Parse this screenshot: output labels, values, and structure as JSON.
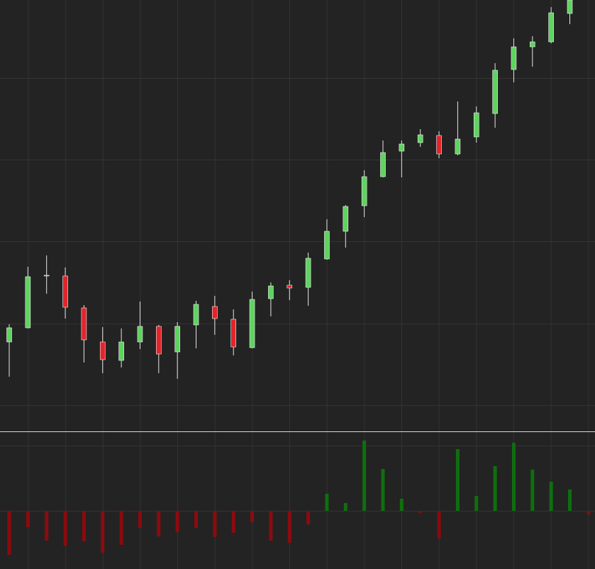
{
  "chart_data": [
    {
      "type": "candlestick",
      "up_color": "#5fd35f",
      "down_color": "#e3242b",
      "grid": true,
      "categories": [
        null,
        null,
        null,
        null,
        null,
        null,
        null,
        null,
        null,
        null,
        null,
        null,
        null,
        null,
        null,
        null,
        null,
        null,
        null,
        null,
        null,
        null,
        null,
        null,
        null,
        null,
        null,
        null,
        null,
        null,
        null,
        null
      ],
      "open": [
        126,
        146,
        219,
        219,
        174,
        126,
        100,
        126,
        148,
        112,
        150,
        176,
        158,
        118,
        187,
        206,
        203,
        243,
        282,
        318,
        359,
        395,
        407,
        417,
        391,
        415,
        448,
        510,
        542,
        549,
        589,
        null
      ],
      "high": [
        151,
        232,
        248,
        231,
        178,
        147,
        145,
        183,
        150,
        154,
        184,
        191,
        172,
        197,
        210,
        213,
        252,
        299,
        319,
        368,
        410,
        410,
        426,
        423,
        465,
        458,
        519,
        554,
        557,
        598,
        608,
        null
      ],
      "low": [
        77,
        145,
        194,
        159,
        97,
        82,
        90,
        116,
        82,
        74,
        117,
        136,
        107,
        117,
        162,
        185,
        177,
        242,
        259,
        302,
        358,
        358,
        401,
        385,
        389,
        407,
        428,
        492,
        514,
        547,
        574,
        null
      ],
      "close": [
        146,
        218,
        220,
        175,
        129,
        101,
        126,
        148,
        109,
        148,
        179,
        159,
        119,
        186,
        205,
        202,
        244,
        282,
        317,
        359,
        393,
        405,
        418,
        391,
        412,
        449,
        509,
        542,
        549,
        590,
        608,
        null
      ],
      "ylim": [
        0,
        608
      ],
      "yticks": [
        37,
        152,
        268,
        383,
        498
      ]
    },
    {
      "type": "bar",
      "up_color": "#0f6e0f",
      "down_color": "#8c0a0f",
      "grid": true,
      "categories": [
        null,
        null,
        null,
        null,
        null,
        null,
        null,
        null,
        null,
        null,
        null,
        null,
        null,
        null,
        null,
        null,
        null,
        null,
        null,
        null,
        null,
        null,
        null,
        null,
        null,
        null,
        null,
        null,
        null,
        null,
        null,
        null
      ],
      "values": [
        -62,
        -23,
        -42,
        -49,
        -43,
        -59,
        -48,
        -24,
        -36,
        -30,
        -24,
        -37,
        -31,
        -16,
        -42,
        -45,
        -19,
        24,
        11,
        99,
        59,
        17,
        -3,
        -39,
        87,
        21,
        63,
        96,
        58,
        41,
        30,
        -5
      ],
      "ylim": [
        -82,
        112
      ],
      "yticks": [
        0,
        92
      ]
    }
  ]
}
